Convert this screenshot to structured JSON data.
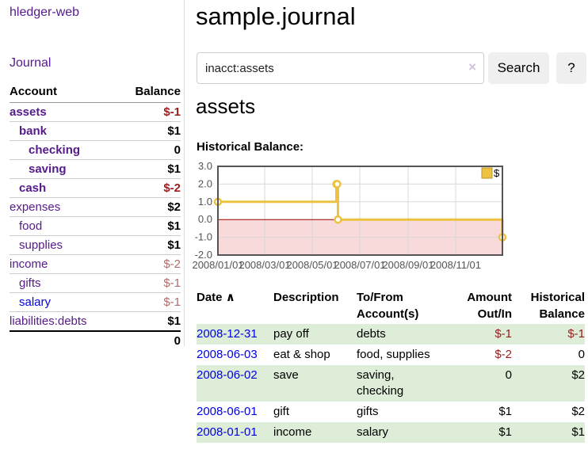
{
  "app": {
    "brand": "hledger-web",
    "nav_journal": "Journal"
  },
  "header": {
    "title": "sample.journal"
  },
  "search": {
    "query": "inacct:assets",
    "clear_icon": "×",
    "button": "Search",
    "help_button": "?"
  },
  "main": {
    "heading": "assets"
  },
  "sidebar": {
    "header": {
      "account": "Account",
      "balance": "Balance"
    },
    "accounts": [
      {
        "name": "assets",
        "depth": 0,
        "balance": "$-1",
        "bold": true,
        "balance_style": "bal-neg-strong"
      },
      {
        "name": "bank",
        "depth": 1,
        "balance": "$1",
        "bold": true,
        "balance_style": "bal-pos"
      },
      {
        "name": "checking",
        "depth": 2,
        "balance": "0",
        "bold": true,
        "balance_style": "bal-pos"
      },
      {
        "name": "saving",
        "depth": 2,
        "balance": "$1",
        "bold": true,
        "balance_style": "bal-pos"
      },
      {
        "name": "cash",
        "depth": 1,
        "balance": "$-2",
        "bold": true,
        "balance_style": "bal-neg-strong"
      },
      {
        "name": "expenses",
        "depth": 0,
        "balance": "$2",
        "bold": false,
        "balance_style": "bal-pos"
      },
      {
        "name": "food",
        "depth": 1,
        "balance": "$1",
        "bold": false,
        "balance_style": "bal-pos"
      },
      {
        "name": "supplies",
        "depth": 1,
        "balance": "$1",
        "bold": false,
        "balance_style": "bal-pos"
      },
      {
        "name": "income",
        "depth": 0,
        "balance": "$-2",
        "bold": false,
        "balance_style": "bal-neg-faded"
      },
      {
        "name": "gifts",
        "depth": 1,
        "balance": "$-1",
        "bold": false,
        "balance_style": "bal-neg-faded"
      },
      {
        "name": "salary",
        "depth": 1,
        "balance": "$-1",
        "bold": false,
        "balance_style": "bal-neg-faded",
        "link_color": "blue"
      },
      {
        "name": "liabilities:debts",
        "depth": 0,
        "balance": "$1",
        "bold": false,
        "balance_style": "bal-pos"
      }
    ],
    "total": "0"
  },
  "chart_data": {
    "type": "line",
    "title": "Historical Balance:",
    "step": true,
    "ylim": [
      -2,
      3
    ],
    "x_range_days": [
      0,
      365
    ],
    "y_ticks": [
      {
        "value": 3,
        "label": "3.0"
      },
      {
        "value": 2,
        "label": "2.0"
      },
      {
        "value": 1,
        "label": "1.0"
      },
      {
        "value": 0,
        "label": "0.0"
      },
      {
        "value": -1,
        "label": "-1.0"
      },
      {
        "value": -2,
        "label": "-2.0"
      }
    ],
    "x_ticks": [
      {
        "day": 0,
        "label": "2008/01/01"
      },
      {
        "day": 60,
        "label": "2008/03/01"
      },
      {
        "day": 121,
        "label": "2008/05/01"
      },
      {
        "day": 182,
        "label": "2008/07/01"
      },
      {
        "day": 244,
        "label": "2008/09/01"
      },
      {
        "day": 305,
        "label": "2008/11/01"
      }
    ],
    "series": [
      {
        "name": "$",
        "color": "#edc240",
        "points": [
          {
            "day": 0,
            "date": "2008-01-01",
            "value": 1
          },
          {
            "day": 152,
            "date": "2008-06-01",
            "value": 2
          },
          {
            "day": 153,
            "date": "2008-06-02",
            "value": 2
          },
          {
            "day": 154,
            "date": "2008-06-03",
            "value": 0
          },
          {
            "day": 365,
            "date": "2008-12-31",
            "value": -1
          }
        ]
      }
    ],
    "legend": {
      "position": "top-right",
      "items": [
        {
          "label": "$",
          "color": "#edc240"
        }
      ]
    },
    "colors": {
      "grid": "#d8d8d8",
      "border": "#545454",
      "zero_line": "#990000",
      "negative_region": "#f9dada",
      "tick_text": "#545454",
      "marker_fill": "#ffffff"
    },
    "grid": true
  },
  "table": {
    "headers": {
      "date": "Date",
      "sort_icon": "∧",
      "description": "Description",
      "tofrom": "To/From Account(s)",
      "amount": "Amount Out/In",
      "balance": "Historical Balance"
    },
    "rows": [
      {
        "date": "2008-12-31",
        "description": "pay off",
        "accounts": "debts",
        "amount": "$-1",
        "amount_neg": true,
        "balance": "$-1",
        "balance_neg": true
      },
      {
        "date": "2008-06-03",
        "description": "eat & shop",
        "accounts": "food, supplies",
        "amount": "$-2",
        "amount_neg": true,
        "balance": "0",
        "balance_neg": false
      },
      {
        "date": "2008-06-02",
        "description": "save",
        "accounts": "saving, checking",
        "amount": "0",
        "amount_neg": false,
        "balance": "$2",
        "balance_neg": false
      },
      {
        "date": "2008-06-01",
        "description": "gift",
        "accounts": "gifts",
        "amount": "$1",
        "amount_neg": false,
        "balance": "$2",
        "balance_neg": false
      },
      {
        "date": "2008-01-01",
        "description": "income",
        "accounts": "salary",
        "amount": "$1",
        "amount_neg": false,
        "balance": "$1",
        "balance_neg": false
      }
    ]
  },
  "colors": {
    "link_visited": "#551a8b",
    "link_new": "#0000ee",
    "negative_strong": "#961d1d",
    "negative_faded": "#b36a6a",
    "row_stripe_green": "#deedd8",
    "button_bg": "#efefef"
  }
}
